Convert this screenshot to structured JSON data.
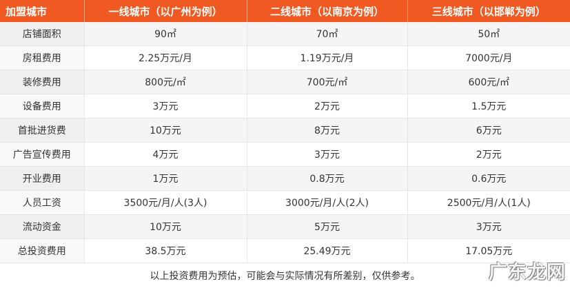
{
  "table": {
    "headers": [
      "加盟城市",
      "一线城市（以广州为例）",
      "二线城市（以南京为例）",
      "三线城市（以邯郸为例）"
    ],
    "rows": [
      {
        "label": "店铺面积",
        "values": [
          "90㎡",
          "70㎡",
          "50㎡"
        ]
      },
      {
        "label": "房租费用",
        "values": [
          "2.25万元/月",
          "1.19万元/月",
          "7000元/月"
        ]
      },
      {
        "label": "装修费用",
        "values": [
          "800元/㎡",
          "700元/㎡",
          "600元/㎡"
        ]
      },
      {
        "label": "设备费用",
        "values": [
          "3万元",
          "2万元",
          "1.5万元"
        ]
      },
      {
        "label": "首批进货费",
        "values": [
          "10万元",
          "8万元",
          "6万元"
        ]
      },
      {
        "label": "广告宣传费用",
        "values": [
          "4万元",
          "3万元",
          "2万元"
        ]
      },
      {
        "label": "开业费用",
        "values": [
          "1万元",
          "0.8万元",
          "0.6万元"
        ]
      },
      {
        "label": "人员工资",
        "values": [
          "3500元/月/人(3人)",
          "3000元/月/人(2人)",
          "2500元/月/人(1人)"
        ]
      },
      {
        "label": "流动资金",
        "values": [
          "10万元",
          "5万元",
          "3万元"
        ]
      },
      {
        "label": "总投资费用",
        "values": [
          "38.5万元",
          "25.49万元",
          "17.05万元"
        ]
      }
    ]
  },
  "note": "以上投资费用为预估，可能会与实际情况有所差别，仅供参考。",
  "watermark": "广东龙网",
  "colors": {
    "header_bg": "#f05a22",
    "header_text": "#ffffff"
  }
}
